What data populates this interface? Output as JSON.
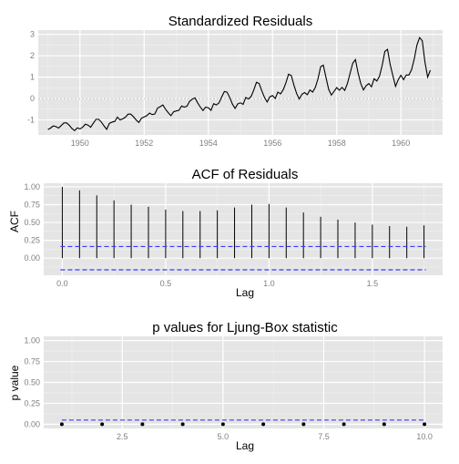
{
  "colors": {
    "panel_bg": "#e5e5e5",
    "grid_major": "#ffffff",
    "grid_minor": "#f2f2f2",
    "line": "#000000",
    "bound": "#3b3bff",
    "zero_line": "#b3b3b3"
  },
  "chart_data": [
    {
      "type": "line",
      "title": "Standardized Residuals",
      "xlabel": "",
      "ylabel": "",
      "xlim": [
        1948.7,
        1961.3
      ],
      "ylim": [
        -1.7,
        3.2
      ],
      "x_ticks": [
        1950,
        1952,
        1954,
        1956,
        1958,
        1960
      ],
      "x_tick_labels": [
        "1950",
        "1952",
        "1954",
        "1956",
        "1958",
        "1960"
      ],
      "y_ticks": [
        -1,
        0,
        1,
        2,
        3
      ],
      "y_tick_labels": [
        "-1",
        "0",
        "1",
        "2",
        "3"
      ],
      "reference_line": 0,
      "grid": true,
      "x_start": 1949.0,
      "x_step": 0.0833333,
      "series": [
        {
          "values": [
            -1.45,
            -1.38,
            -1.28,
            -1.31,
            -1.38,
            -1.26,
            -1.14,
            -1.14,
            -1.25,
            -1.4,
            -1.5,
            -1.37,
            -1.42,
            -1.34,
            -1.2,
            -1.24,
            -1.34,
            -1.15,
            -0.97,
            -0.97,
            -1.1,
            -1.28,
            -1.44,
            -1.16,
            -1.1,
            -1.07,
            -0.87,
            -1.0,
            -0.95,
            -0.87,
            -0.73,
            -0.73,
            -0.85,
            -1.0,
            -1.12,
            -0.92,
            -0.86,
            -0.8,
            -0.68,
            -0.75,
            -0.72,
            -0.45,
            -0.38,
            -0.3,
            -0.5,
            -0.66,
            -0.8,
            -0.62,
            -0.58,
            -0.55,
            -0.35,
            -0.4,
            -0.36,
            -0.13,
            -0.03,
            0.03,
            -0.2,
            -0.4,
            -0.56,
            -0.4,
            -0.43,
            -0.55,
            -0.24,
            -0.3,
            -0.2,
            0.08,
            0.33,
            0.3,
            0.05,
            -0.26,
            -0.46,
            -0.25,
            -0.2,
            -0.27,
            0.05,
            -0.02,
            0.1,
            0.4,
            0.76,
            0.7,
            0.36,
            0.05,
            -0.16,
            0.08,
            0.14,
            0.0,
            0.3,
            0.22,
            0.41,
            0.73,
            1.14,
            1.08,
            0.63,
            0.24,
            -0.02,
            0.2,
            0.28,
            0.18,
            0.4,
            0.3,
            0.52,
            0.92,
            1.49,
            1.56,
            0.98,
            0.43,
            0.16,
            0.33,
            0.51,
            0.39,
            0.52,
            0.38,
            0.7,
            1.18,
            1.65,
            1.82,
            1.19,
            0.7,
            0.4,
            0.6,
            0.7,
            0.55,
            0.93,
            0.82,
            1.04,
            1.55,
            2.2,
            2.3,
            1.59,
            1.07,
            0.57,
            0.88,
            1.09,
            0.88,
            1.1,
            1.1,
            1.35,
            1.85,
            2.5,
            2.85,
            2.7,
            1.7,
            1.0,
            1.32
          ]
        }
      ]
    },
    {
      "type": "bar",
      "title": "ACF of Residuals",
      "xlabel": "Lag",
      "ylabel": "ACF",
      "xlim": [
        -0.09,
        1.84
      ],
      "ylim": [
        -0.24,
        1.05
      ],
      "x_ticks": [
        0,
        0.5,
        1,
        1.5
      ],
      "x_tick_labels": [
        "0.0",
        "0.5",
        "1.0",
        "1.5"
      ],
      "y_ticks": [
        0,
        0.25,
        0.5,
        0.75,
        1
      ],
      "y_tick_labels": [
        "0.00",
        "0.25",
        "0.50",
        "0.75",
        "1.00"
      ],
      "grid": true,
      "bounds": [
        0.163,
        -0.163
      ],
      "x": [
        0,
        0.0833,
        0.1667,
        0.25,
        0.3333,
        0.4167,
        0.5,
        0.5833,
        0.6667,
        0.75,
        0.8333,
        0.9167,
        1.0,
        1.0833,
        1.1667,
        1.25,
        1.3333,
        1.4167,
        1.5,
        1.5833,
        1.6667,
        1.75
      ],
      "values": [
        1.0,
        0.95,
        0.88,
        0.81,
        0.75,
        0.72,
        0.68,
        0.66,
        0.66,
        0.67,
        0.71,
        0.75,
        0.76,
        0.71,
        0.64,
        0.58,
        0.54,
        0.5,
        0.47,
        0.45,
        0.44,
        0.46
      ]
    },
    {
      "type": "scatter",
      "title": "p values for Ljung-Box statistic",
      "xlabel": "Lag",
      "ylabel": "p value",
      "xlim": [
        0.55,
        10.45
      ],
      "ylim": [
        -0.05,
        1.05
      ],
      "x_ticks": [
        2.5,
        5,
        7.5,
        10
      ],
      "x_tick_labels": [
        "2.5",
        "5.0",
        "7.5",
        "10.0"
      ],
      "y_ticks": [
        0,
        0.25,
        0.5,
        0.75,
        1
      ],
      "y_tick_labels": [
        "0.00",
        "0.25",
        "0.50",
        "0.75",
        "1.00"
      ],
      "grid": true,
      "threshold": 0.05,
      "x": [
        1,
        2,
        3,
        4,
        5,
        6,
        7,
        8,
        9,
        10
      ],
      "values": [
        0,
        0,
        0,
        0,
        0,
        0,
        0,
        0,
        0,
        0
      ]
    }
  ]
}
